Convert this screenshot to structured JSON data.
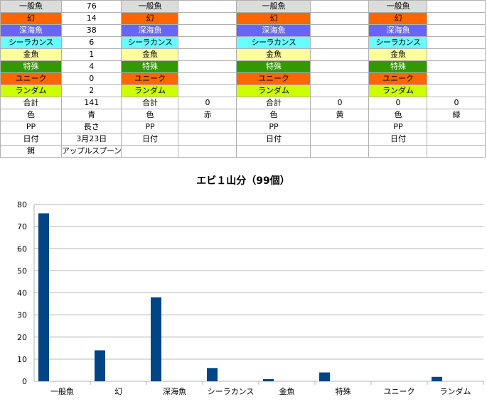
{
  "colors": {
    "ippan": "#dcdcdc",
    "maboroshi": "#ff6600",
    "shinkai": "#6666ff",
    "sheela": "#66ffff",
    "kingyo": "#ffff99",
    "tokushu": "#339900",
    "unique": "#ff6600",
    "random": "#ccff00",
    "bar": "#004586",
    "grid": "#b3b3b3"
  },
  "sheet": {
    "rows": [
      {
        "cls": "c-ippan",
        "cells": [
          "一般魚",
          "76",
          "一般魚",
          "",
          "一般魚",
          "",
          "一般魚",
          ""
        ]
      },
      {
        "cls": "c-maboroshi",
        "cells": [
          "幻",
          "14",
          "幻",
          "",
          "幻",
          "",
          "幻",
          ""
        ]
      },
      {
        "cls": "c-shinkai",
        "cells": [
          "深海魚",
          "38",
          "深海魚",
          "",
          "深海魚",
          "",
          "深海魚",
          ""
        ]
      },
      {
        "cls": "c-sheela",
        "cells": [
          "シーラカンス",
          "6",
          "シーラカンス",
          "",
          "シーラカンス",
          "",
          "シーラカンス",
          ""
        ]
      },
      {
        "cls": "c-kingyo",
        "cells": [
          "金魚",
          "1",
          "金魚",
          "",
          "金魚",
          "",
          "金魚",
          ""
        ]
      },
      {
        "cls": "c-tokushu",
        "cells": [
          "特殊",
          "4",
          "特殊",
          "",
          "特殊",
          "",
          "特殊",
          ""
        ]
      },
      {
        "cls": "c-unique",
        "cells": [
          "ユニーク",
          "0",
          "ユニーク",
          "",
          "ユニーク",
          "",
          "ユニーク",
          ""
        ]
      },
      {
        "cls": "c-random",
        "cells": [
          "ランダム",
          "2",
          "ランダム",
          "",
          "ランダム",
          "",
          "ランダム",
          ""
        ]
      },
      {
        "cls": "",
        "cells": [
          "合計",
          "141",
          "合計",
          "0",
          "合計",
          "0",
          "0",
          "0"
        ]
      },
      {
        "cls": "",
        "cells": [
          "色",
          "青",
          "色",
          "赤",
          "色",
          "黄",
          "色",
          "緑"
        ]
      },
      {
        "cls": "",
        "cells": [
          "PP",
          "長さ",
          "PP",
          "",
          "PP",
          "",
          "PP",
          ""
        ]
      },
      {
        "cls": "",
        "cells": [
          "日付",
          "3月23日",
          "日付",
          "",
          "日付",
          "",
          "日付",
          ""
        ]
      },
      {
        "cls": "",
        "cells": [
          "餌",
          "アップルスプーン",
          "",
          "",
          "",
          "",
          "",
          ""
        ]
      }
    ]
  },
  "chart_data": {
    "type": "bar",
    "title": "エビ１山分（99個）",
    "categories": [
      "一般魚",
      "幻",
      "深海魚",
      "シーラカンス",
      "金魚",
      "特殊",
      "ユニーク",
      "ランダム"
    ],
    "values": [
      76,
      14,
      38,
      6,
      1,
      4,
      0,
      2
    ],
    "ylim": [
      0,
      80
    ],
    "yticks": [
      "0",
      "10",
      "20",
      "30",
      "40",
      "50",
      "60",
      "70",
      "80"
    ],
    "grid": true,
    "legend": "none"
  }
}
